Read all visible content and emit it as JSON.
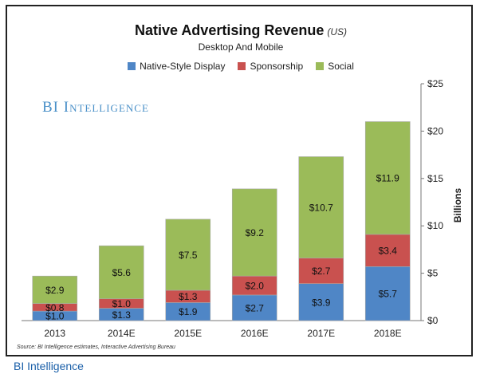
{
  "chart_data": {
    "type": "bar",
    "stacked": true,
    "title": "Native Advertising Revenue",
    "title_region": "(US)",
    "subtitle": "Desktop And Mobile",
    "ylabel": "Billions",
    "ylim": [
      0,
      25
    ],
    "yticks": [
      0,
      5,
      10,
      15,
      20,
      25
    ],
    "ytick_labels": [
      "$0",
      "$5",
      "$10",
      "$15",
      "$20",
      "$25"
    ],
    "y_axis_side": "right",
    "legend_position": "top-center",
    "categories": [
      "2013",
      "2014E",
      "2015E",
      "2016E",
      "2017E",
      "2018E"
    ],
    "series": [
      {
        "name": "Native-Style Display",
        "color": "#4f86c6",
        "values": [
          1.0,
          1.3,
          1.9,
          2.7,
          3.9,
          5.7
        ],
        "labels": [
          "$1.0",
          "$1.3",
          "$1.9",
          "$2.7",
          "$3.9",
          "$5.7"
        ]
      },
      {
        "name": "Sponsorship",
        "color": "#c9514f",
        "values": [
          0.8,
          1.0,
          1.3,
          2.0,
          2.7,
          3.4
        ],
        "labels": [
          "$0.8",
          "$1.0",
          "$1.3",
          "$2.0",
          "$2.7",
          "$3.4"
        ]
      },
      {
        "name": "Social",
        "color": "#9bbb59",
        "values": [
          2.9,
          5.6,
          7.5,
          9.2,
          10.7,
          11.9
        ],
        "labels": [
          "$2.9",
          "$5.6",
          "$7.5",
          "$9.2",
          "$10.7",
          "$11.9"
        ]
      }
    ]
  },
  "brand_watermark": "BI Intelligence",
  "source_note": "Source: BI Intelligence estimates, Interactive Advertising Bureau",
  "footer_credit": "BI Intelligence"
}
